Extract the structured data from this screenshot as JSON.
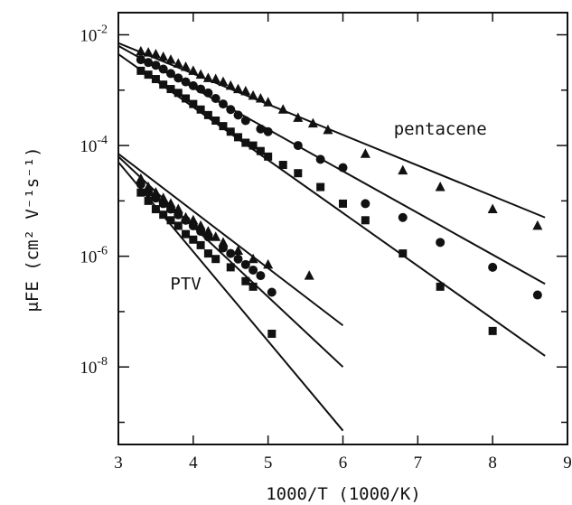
{
  "chart_data": {
    "type": "scatter",
    "xlabel": "1000/T (1000/K)",
    "ylabel": "μFE (cm² V⁻¹s⁻¹)",
    "xlim": [
      3,
      9
    ],
    "ylim_log10": [
      -9.4,
      -1.6
    ],
    "yscale": "log",
    "xticks": [
      3,
      4,
      5,
      6,
      7,
      8,
      9
    ],
    "xtick_labels": [
      "3",
      "4",
      "5",
      "6",
      "7",
      "8",
      "9"
    ],
    "yticks_log10": [
      -8,
      -6,
      -4,
      -2
    ],
    "ytick_labels": [
      {
        "base": "10",
        "exp": "-8"
      },
      {
        "base": "10",
        "exp": "-6"
      },
      {
        "base": "10",
        "exp": "-4"
      },
      {
        "base": "10",
        "exp": "-2"
      }
    ],
    "annotations": [
      {
        "text": "pentacene",
        "x": 7.3,
        "y_log10": -3.8
      },
      {
        "text": "PTV",
        "x": 3.9,
        "y_log10": -6.6
      }
    ],
    "series": [
      {
        "marker": "triangle",
        "points": [
          [
            3.3,
            -2.3
          ],
          [
            3.4,
            -2.32
          ],
          [
            3.5,
            -2.35
          ],
          [
            3.6,
            -2.4
          ],
          [
            3.7,
            -2.45
          ],
          [
            3.8,
            -2.52
          ],
          [
            3.9,
            -2.58
          ],
          [
            4.0,
            -2.65
          ],
          [
            4.1,
            -2.72
          ],
          [
            4.2,
            -2.78
          ],
          [
            4.3,
            -2.8
          ],
          [
            4.4,
            -2.85
          ],
          [
            4.5,
            -2.92
          ],
          [
            4.6,
            -2.98
          ],
          [
            4.7,
            -3.02
          ],
          [
            4.8,
            -3.1
          ],
          [
            4.9,
            -3.15
          ],
          [
            5.0,
            -3.22
          ],
          [
            5.2,
            -3.35
          ],
          [
            5.4,
            -3.5
          ],
          [
            5.6,
            -3.6
          ],
          [
            5.8,
            -3.72
          ],
          [
            6.3,
            -4.15
          ],
          [
            6.8,
            -4.45
          ],
          [
            7.3,
            -4.75
          ],
          [
            8.0,
            -5.15
          ],
          [
            8.6,
            -5.45
          ]
        ],
        "fit": [
          [
            3.0,
            -2.15
          ],
          [
            8.7,
            -5.3
          ]
        ]
      },
      {
        "marker": "circle",
        "points": [
          [
            3.3,
            -2.45
          ],
          [
            3.4,
            -2.5
          ],
          [
            3.5,
            -2.55
          ],
          [
            3.6,
            -2.62
          ],
          [
            3.7,
            -2.7
          ],
          [
            3.8,
            -2.78
          ],
          [
            3.9,
            -2.85
          ],
          [
            4.0,
            -2.92
          ],
          [
            4.1,
            -2.98
          ],
          [
            4.2,
            -3.05
          ],
          [
            4.3,
            -3.15
          ],
          [
            4.4,
            -3.25
          ],
          [
            4.5,
            -3.35
          ],
          [
            4.6,
            -3.45
          ],
          [
            4.7,
            -3.55
          ],
          [
            4.9,
            -3.7
          ],
          [
            5.0,
            -3.75
          ],
          [
            5.4,
            -4.0
          ],
          [
            5.7,
            -4.25
          ],
          [
            6.0,
            -4.4
          ],
          [
            6.3,
            -5.05
          ],
          [
            6.8,
            -5.3
          ],
          [
            7.3,
            -5.75
          ],
          [
            8.0,
            -6.2
          ],
          [
            8.6,
            -6.7
          ]
        ],
        "fit": [
          [
            3.0,
            -2.2
          ],
          [
            8.7,
            -6.5
          ]
        ]
      },
      {
        "marker": "square",
        "points": [
          [
            3.3,
            -2.65
          ],
          [
            3.4,
            -2.72
          ],
          [
            3.5,
            -2.8
          ],
          [
            3.6,
            -2.9
          ],
          [
            3.7,
            -2.98
          ],
          [
            3.8,
            -3.05
          ],
          [
            3.9,
            -3.15
          ],
          [
            4.0,
            -3.25
          ],
          [
            4.1,
            -3.35
          ],
          [
            4.2,
            -3.45
          ],
          [
            4.3,
            -3.55
          ],
          [
            4.4,
            -3.65
          ],
          [
            4.5,
            -3.75
          ],
          [
            4.6,
            -3.85
          ],
          [
            4.7,
            -3.95
          ],
          [
            4.8,
            -4.0
          ],
          [
            4.9,
            -4.1
          ],
          [
            5.0,
            -4.2
          ],
          [
            5.2,
            -4.35
          ],
          [
            5.4,
            -4.5
          ],
          [
            5.7,
            -4.75
          ],
          [
            6.0,
            -5.05
          ],
          [
            6.3,
            -5.35
          ],
          [
            6.8,
            -5.95
          ],
          [
            7.3,
            -6.55
          ],
          [
            8.0,
            -7.35
          ]
        ],
        "fit": [
          [
            3.0,
            -2.35
          ],
          [
            8.7,
            -7.8
          ]
        ]
      },
      {
        "marker": "triangle",
        "points": [
          [
            3.3,
            -4.6
          ],
          [
            3.4,
            -4.75
          ],
          [
            3.5,
            -4.85
          ],
          [
            3.6,
            -4.95
          ],
          [
            3.7,
            -5.05
          ],
          [
            3.8,
            -5.15
          ],
          [
            3.9,
            -5.3
          ],
          [
            4.0,
            -5.35
          ],
          [
            4.1,
            -5.45
          ],
          [
            4.2,
            -5.55
          ],
          [
            4.3,
            -5.65
          ],
          [
            4.4,
            -5.75
          ],
          [
            4.6,
            -5.9
          ],
          [
            4.8,
            -6.05
          ],
          [
            5.0,
            -6.15
          ],
          [
            5.55,
            -6.35
          ]
        ],
        "fit": [
          [
            3.0,
            -4.15
          ],
          [
            6.0,
            -7.25
          ]
        ]
      },
      {
        "marker": "circle",
        "points": [
          [
            3.3,
            -4.7
          ],
          [
            3.4,
            -4.85
          ],
          [
            3.5,
            -4.95
          ],
          [
            3.6,
            -5.05
          ],
          [
            3.7,
            -5.15
          ],
          [
            3.8,
            -5.25
          ],
          [
            3.9,
            -5.35
          ],
          [
            4.0,
            -5.45
          ],
          [
            4.1,
            -5.55
          ],
          [
            4.2,
            -5.65
          ],
          [
            4.4,
            -5.85
          ],
          [
            4.5,
            -5.95
          ],
          [
            4.6,
            -6.05
          ],
          [
            4.7,
            -6.15
          ],
          [
            4.8,
            -6.25
          ],
          [
            4.9,
            -6.35
          ],
          [
            5.05,
            -6.65
          ]
        ],
        "fit": [
          [
            3.0,
            -4.2
          ],
          [
            6.0,
            -8.0
          ]
        ]
      },
      {
        "marker": "square",
        "points": [
          [
            3.3,
            -4.85
          ],
          [
            3.4,
            -5.0
          ],
          [
            3.5,
            -5.15
          ],
          [
            3.6,
            -5.25
          ],
          [
            3.7,
            -5.35
          ],
          [
            3.8,
            -5.45
          ],
          [
            3.9,
            -5.6
          ],
          [
            4.0,
            -5.7
          ],
          [
            4.1,
            -5.8
          ],
          [
            4.2,
            -5.95
          ],
          [
            4.3,
            -6.05
          ],
          [
            4.5,
            -6.2
          ],
          [
            4.7,
            -6.45
          ],
          [
            4.8,
            -6.55
          ],
          [
            5.05,
            -7.4
          ]
        ],
        "fit": [
          [
            3.0,
            -4.3
          ],
          [
            6.0,
            -9.15
          ]
        ]
      }
    ]
  }
}
